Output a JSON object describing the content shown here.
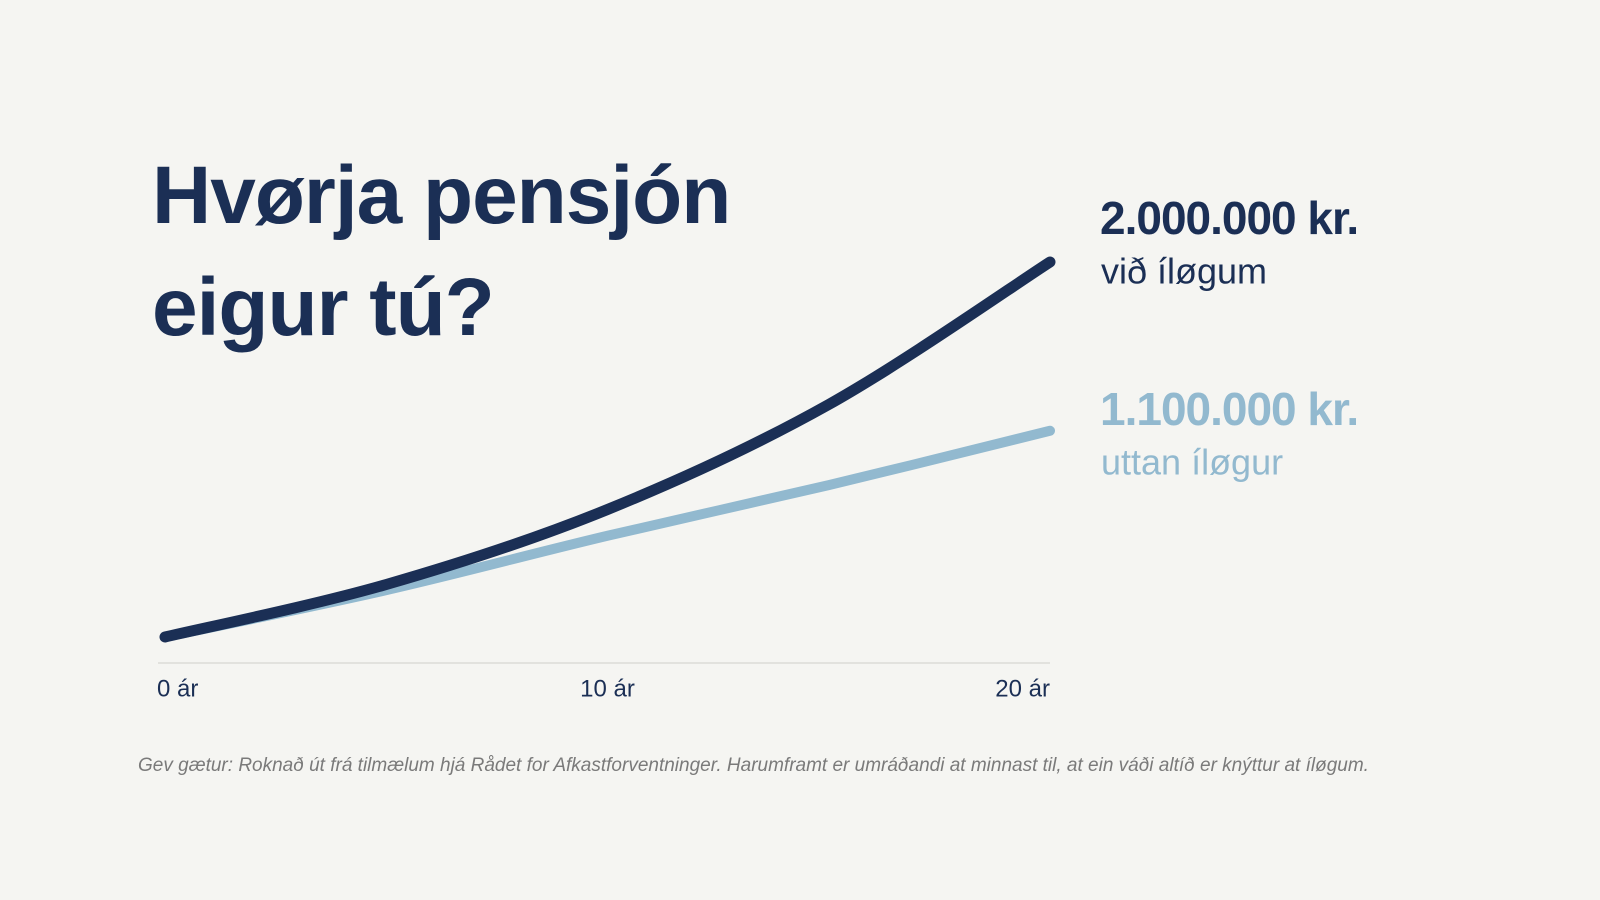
{
  "chart_data": {
    "type": "line",
    "title": "Hvørja pensjón eigur tú?",
    "x": [
      0,
      5,
      10,
      15,
      20
    ],
    "xlim": [
      0,
      20
    ],
    "xticks": [
      {
        "value": 0,
        "label": "0 ár"
      },
      {
        "value": 10,
        "label": "10 ár"
      },
      {
        "value": 20,
        "label": "20 ár"
      }
    ],
    "series": [
      {
        "name": "við íløgum",
        "color": "#1b2f55",
        "values": [
          0,
          280000,
          680000,
          1240000,
          2000000
        ],
        "value_labels": [
          null,
          null,
          null,
          null,
          "2.000.000 kr."
        ]
      },
      {
        "name": "uttan íløgur",
        "color": "#92b9cf",
        "values": [
          0,
          250000,
          540000,
          810000,
          1100000
        ],
        "value_labels": [
          null,
          null,
          null,
          null,
          "1.100.000 kr."
        ]
      }
    ],
    "footnote": "Gev gætur: Roknað út frá tilmælum hjá Rådet for Afkastforventninger. Harumframt er umráðandi at minnast til, at ein váði altíð er knýttur at íløgum."
  }
}
